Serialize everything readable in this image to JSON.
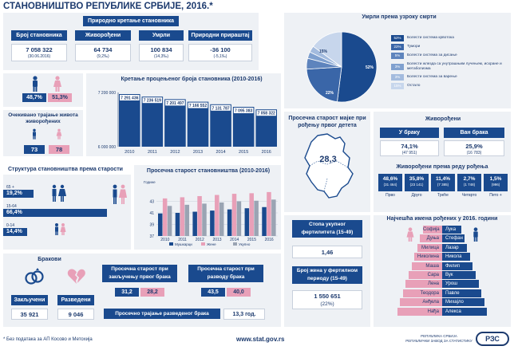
{
  "title": "СТАНОВНИШТВО РЕПУБЛИКЕ СРБИЈЕ, 2016.*",
  "natural": {
    "title": "Природно кретање становника",
    "cols": [
      {
        "label": "Број становника",
        "value": "7 058 322",
        "sub": "(30.06.2016)"
      },
      {
        "label": "Живорођени",
        "value": "64 734",
        "sub": "(9,2‰)"
      },
      {
        "label": "Умрли",
        "value": "100 834",
        "sub": "(14,3‰)"
      },
      {
        "label": "Природни прираштај",
        "value": "-36 100",
        "sub": "(-5,1‰)"
      }
    ]
  },
  "gender": {
    "male": "48,7%",
    "female": "51,3%"
  },
  "life": {
    "title": "Очекивано трајање живота живорођених",
    "male": "73",
    "female": "78"
  },
  "trend": {
    "title": "Кретање процењеног броја становника (2010-2016)"
  },
  "deaths": {
    "title": "Умрли према узроку смрти",
    "legend": [
      {
        "pct": "52%",
        "label": "Болести система крвотока",
        "color": "#1a4a8e"
      },
      {
        "pct": "22%",
        "label": "Тумори",
        "color": "#3a66a8"
      },
      {
        "pct": "5%",
        "label": "Болести система за дисање",
        "color": "#5e84bd"
      },
      {
        "pct": "3%",
        "label": "Болести жлезда са унутрашњим лучењем, исхране и метаболизма",
        "color": "#7fa0cf"
      },
      {
        "pct": "3%",
        "label": "Болести система за варење",
        "color": "#a3bbde"
      },
      {
        "pct": "15%",
        "label": "Остало",
        "color": "#c7d6ec"
      }
    ],
    "pie_labels": [
      "52%",
      "22%",
      "15%"
    ]
  },
  "age_structure": {
    "title": "Структура становништва према старости",
    "groups": [
      {
        "range": "65 +",
        "pct": "19,2%",
        "value": 19.2
      },
      {
        "range": "15-64",
        "pct": "66,4%",
        "value": 66.4
      },
      {
        "range": "0-14",
        "pct": "14,4%",
        "value": 14.4
      }
    ]
  },
  "avg_age": {
    "title": "Просечна старост становништва (2010-2016)",
    "ylabel": "Године",
    "legend": [
      "Мушкарци",
      "Жене",
      "Укупно"
    ]
  },
  "mother": {
    "title": "Просечна старост мајке при рођењу првог детета",
    "value": "28,3"
  },
  "births": {
    "title": "Живорођени",
    "in_marriage_label": "У браку",
    "in_marriage_pct": "74,1%",
    "in_marriage_val": "(47 951)",
    "out_marriage_label": "Ван брака",
    "out_marriage_pct": "25,9%",
    "out_marriage_val": "(16 783)",
    "order_title": "Живорођени према реду рођења",
    "order": [
      {
        "pct": "48,6%",
        "val": "(31 464)",
        "label": "Прво"
      },
      {
        "pct": "35,8%",
        "val": "(23 141)",
        "label": "Друго"
      },
      {
        "pct": "11,4%",
        "val": "(7 385)",
        "label": "Треће"
      },
      {
        "pct": "2,7%",
        "val": "(1 748)",
        "label": "Четврто"
      },
      {
        "pct": "1,5%",
        "val": "(996)",
        "label": "Пето +"
      }
    ]
  },
  "marriage": {
    "title": "Бракови",
    "married_label": "Закључени",
    "married_val": "35 921",
    "divorced_label": "Разведени",
    "divorced_val": "9 046",
    "age_marriage_title": "Просечна старост при закључењу првог брака",
    "age_marriage_m": "31,2",
    "age_marriage_f": "28,2",
    "age_divorce_title": "Просечна старост при разводу брака",
    "age_divorce_m": "43,5",
    "age_divorce_f": "40,0",
    "duration_label": "Просечно трајање разведеног брака",
    "duration_val": "13,3 год."
  },
  "fertility": {
    "title": "Стопа укупног фертилитета (15-49)",
    "value": "1,46",
    "women_title": "Број жена у фертилном периоду (15-49)",
    "women_value": "1 550 651",
    "women_pct": "(22%)"
  },
  "names": {
    "title": "Најчешћа имена рођених у 2016. години",
    "female": [
      "Софија",
      "Дуња",
      "Милица",
      "Николина",
      "Маша",
      "Сара",
      "Лена",
      "Теодора",
      "Анђела",
      "Нађа"
    ],
    "male": [
      "Лука",
      "Стефан",
      "Лазар",
      "Никола",
      "Филип",
      "Вук",
      "Урош",
      "Павле",
      "Михајло",
      "Алекса"
    ]
  },
  "footer": {
    "note": "* Без података за АП Косово и Метохија",
    "url": "www.stat.gov.rs",
    "org1": "РЕПУБЛИКА СРБИЈА",
    "org2": "РЕПУБЛИЧКИ ЗАВОД ЗА СТАТИСТИКУ",
    "logo": "РЗС"
  },
  "chart_data": [
    {
      "type": "bar",
      "title": "Кретање процењеног броја становника (2010-2016)",
      "categories": [
        "2010",
        "2011",
        "2012",
        "2013",
        "2014",
        "2015",
        "2016"
      ],
      "values": [
        7291436,
        7236519,
        7201497,
        7166552,
        7131787,
        7095383,
        7058322
      ],
      "value_labels": [
        "7 291 436",
        "7 236 519",
        "7 201 497",
        "7 166 552",
        "7 131 787",
        "7 095 383",
        "7 058 322"
      ],
      "ylim": [
        6000000,
        7200000
      ],
      "ytick_labels": [
        "7 200 000",
        "6 000 000"
      ],
      "xlabel": "",
      "ylabel": ""
    },
    {
      "type": "bar",
      "title": "Просечна старост становништва (2010-2016)",
      "categories": [
        "2010",
        "2011",
        "2012",
        "2013",
        "2014",
        "2015",
        "2016"
      ],
      "series": [
        {
          "name": "Мушкарци",
          "values": [
            40.9,
            41.0,
            41.2,
            41.4,
            41.6,
            41.8,
            42.0
          ],
          "color": "#1a4a8e"
        },
        {
          "name": "Жене",
          "values": [
            43.5,
            43.7,
            43.9,
            44.1,
            44.3,
            44.4,
            44.6
          ],
          "color": "#e8a0b8"
        },
        {
          "name": "Укупно",
          "values": [
            42.2,
            42.4,
            42.6,
            42.8,
            43.0,
            43.1,
            43.3
          ],
          "color": "#9aa4b3"
        }
      ],
      "ylim": [
        37,
        45
      ],
      "yticks": [
        "37",
        "39",
        "41",
        "43"
      ],
      "ylabel": "Године",
      "xlabel": ""
    },
    {
      "type": "pie",
      "title": "Умрли према узроку смрти",
      "categories": [
        "Болести система крвотока",
        "Тумори",
        "Болести система за дисање",
        "Болести жлезда са унутрашњим лучењем, исхране и метаболизма",
        "Болести система за варење",
        "Остало"
      ],
      "values": [
        52,
        22,
        5,
        3,
        3,
        15
      ]
    }
  ]
}
